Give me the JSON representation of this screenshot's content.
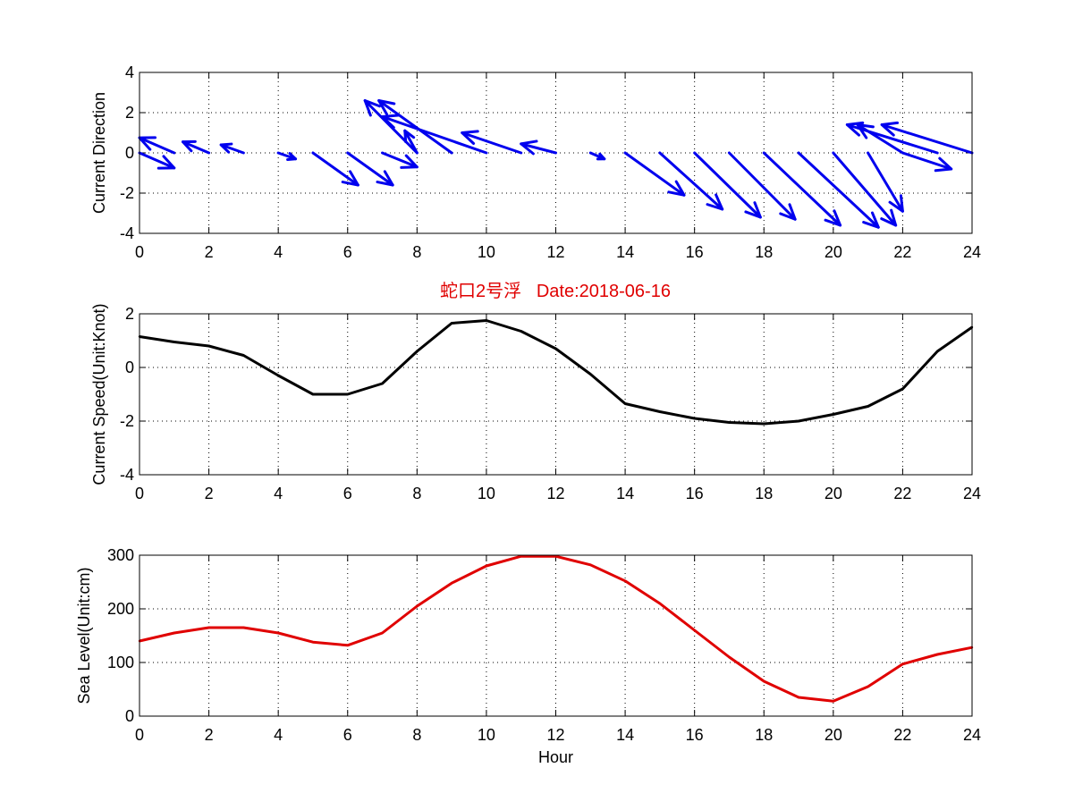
{
  "figure_title": "蛇口2号浮   Date:2018-06-16",
  "colors": {
    "quiver": "#0000ee",
    "speed": "#000000",
    "sea_level": "#e00000",
    "title": "#e00000"
  },
  "chart_data": [
    {
      "type": "quiver",
      "ylabel": "Current Direction",
      "xlabel": "",
      "xlim": [
        0,
        24
      ],
      "ylim": [
        -4,
        4
      ],
      "grid": true,
      "xticks": [
        "0",
        "2",
        "4",
        "6",
        "8",
        "10",
        "12",
        "14",
        "16",
        "18",
        "20",
        "22",
        "24"
      ],
      "yticks": [
        "4",
        "2",
        "0",
        "-2",
        "-4"
      ],
      "vectors": [
        {
          "x": 0,
          "u": 1.0,
          "v": -0.75
        },
        {
          "x": 1,
          "u": -1.0,
          "v": 0.75
        },
        {
          "x": 2,
          "u": -0.75,
          "v": 0.55
        },
        {
          "x": 3,
          "u": -0.65,
          "v": 0.4
        },
        {
          "x": 4,
          "u": 0.5,
          "v": -0.3
        },
        {
          "x": 5,
          "u": 1.3,
          "v": -1.6
        },
        {
          "x": 6,
          "u": 1.3,
          "v": -1.6
        },
        {
          "x": 7,
          "u": 1.0,
          "v": -0.7
        },
        {
          "x": 8,
          "u": -0.35,
          "v": 1.1
        },
        {
          "x": 8,
          "u": -1.5,
          "v": 2.6
        },
        {
          "x": 9,
          "u": -2.1,
          "v": 2.6
        },
        {
          "x": 10,
          "u": -3.0,
          "v": 1.8
        },
        {
          "x": 11,
          "u": -1.7,
          "v": 1.0
        },
        {
          "x": 12,
          "u": -1.0,
          "v": 0.45
        },
        {
          "x": 13,
          "u": 0.4,
          "v": -0.3
        },
        {
          "x": 14,
          "u": 1.7,
          "v": -2.1
        },
        {
          "x": 15,
          "u": 1.8,
          "v": -2.8
        },
        {
          "x": 16,
          "u": 1.9,
          "v": -3.2
        },
        {
          "x": 17,
          "u": 1.9,
          "v": -3.3
        },
        {
          "x": 18,
          "u": 2.2,
          "v": -3.6
        },
        {
          "x": 19,
          "u": 2.3,
          "v": -3.7
        },
        {
          "x": 20,
          "u": 1.8,
          "v": -3.6
        },
        {
          "x": 21,
          "u": 1.0,
          "v": -2.9
        },
        {
          "x": 22,
          "u": -1.3,
          "v": 1.4
        },
        {
          "x": 23,
          "u": -2.6,
          "v": 1.4
        },
        {
          "x": 22,
          "u": 1.4,
          "v": -0.8
        },
        {
          "x": 24,
          "u": -2.6,
          "v": 1.4
        }
      ]
    },
    {
      "type": "line",
      "ylabel": "Current Speed(Unit:Knot)",
      "xlabel": "",
      "xlim": [
        0,
        24
      ],
      "ylim": [
        -4,
        2
      ],
      "grid": true,
      "xticks": [
        "0",
        "2",
        "4",
        "6",
        "8",
        "10",
        "12",
        "14",
        "16",
        "18",
        "20",
        "22",
        "24"
      ],
      "yticks": [
        "2",
        "0",
        "-2",
        "-4"
      ],
      "x": [
        0,
        1,
        2,
        3,
        4,
        5,
        6,
        7,
        8,
        9,
        10,
        11,
        12,
        13,
        14,
        15,
        16,
        17,
        18,
        19,
        20,
        21,
        22,
        23,
        24
      ],
      "values": [
        1.15,
        0.95,
        0.8,
        0.45,
        -0.3,
        -1.0,
        -1.0,
        -0.6,
        0.6,
        1.65,
        1.75,
        1.35,
        0.7,
        -0.25,
        -1.35,
        -1.65,
        -1.9,
        -2.05,
        -2.1,
        -2.0,
        -1.75,
        -1.45,
        -0.8,
        0.6,
        1.5
      ]
    },
    {
      "type": "line",
      "ylabel": "Sea Level(Unit:cm)",
      "xlabel": "Hour",
      "xlim": [
        0,
        24
      ],
      "ylim": [
        0,
        300
      ],
      "grid": true,
      "xticks": [
        "0",
        "2",
        "4",
        "6",
        "8",
        "10",
        "12",
        "14",
        "16",
        "18",
        "20",
        "22",
        "24"
      ],
      "yticks": [
        "300",
        "200",
        "100",
        "0"
      ],
      "x": [
        0,
        1,
        2,
        3,
        4,
        5,
        6,
        7,
        8,
        9,
        10,
        11,
        12,
        13,
        14,
        15,
        16,
        17,
        18,
        19,
        20,
        21,
        22,
        23,
        24
      ],
      "values": [
        140,
        155,
        165,
        165,
        155,
        138,
        132,
        155,
        205,
        248,
        280,
        298,
        298,
        282,
        252,
        210,
        160,
        110,
        65,
        35,
        28,
        55,
        97,
        115,
        128
      ]
    }
  ]
}
